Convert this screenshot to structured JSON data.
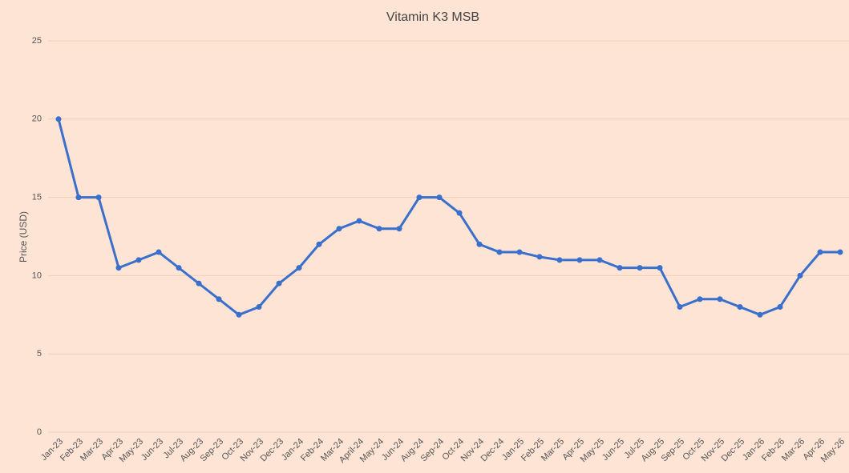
{
  "chart_data": {
    "type": "line",
    "title": "Vitamin K3 MSB",
    "y_label": "Price (USD)",
    "categories": [
      "Jan-23",
      "Feb-23",
      "Mar-23",
      "Apr-23",
      "May-23",
      "Jun-23",
      "Jul-23",
      "Aug-23",
      "Sep-23",
      "Oct-23",
      "Nov-23",
      "Dec-23",
      "Jan-24",
      "Feb-24",
      "Mar-24",
      "April-24",
      "May-24",
      "Jun-24",
      "Aug-24",
      "Sep-24",
      "Oct-24",
      "Nov-24",
      "Dec-24",
      "Jan-25",
      "Feb-25",
      "Mar-25",
      "Apr-25",
      "May-25",
      "Jun-25",
      "Jul-25",
      "Aug-25",
      "Sep-25",
      "Oct-25",
      "Nov-25",
      "Dec-25",
      "Jan-26",
      "Feb-26",
      "Mar-26",
      "Apr-26",
      "May-26"
    ],
    "values": [
      20,
      15,
      15,
      10.5,
      11,
      11.5,
      10.5,
      9.5,
      8.5,
      7.5,
      8,
      9.5,
      10.5,
      12,
      13,
      13.5,
      13,
      13,
      15,
      15,
      14,
      12,
      11.5,
      11.5,
      11.2,
      11,
      11,
      11,
      10.5,
      10.5,
      10.5,
      8,
      8.5,
      8.5,
      8,
      7.5,
      8,
      10,
      11.5,
      11.5
    ],
    "color": "#3a6fcb",
    "ylim": [
      0,
      25
    ],
    "yticks": [
      0,
      5,
      10,
      15,
      20,
      25
    ],
    "grid": true
  }
}
